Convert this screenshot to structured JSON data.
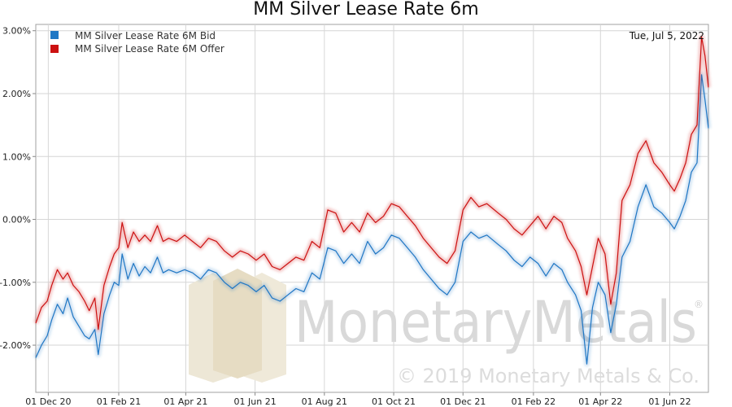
{
  "chart_data": {
    "type": "line",
    "title": "MM Silver Lease Rate 6m",
    "date_label": "Tue, Jul 5, 2022",
    "xlabel": "",
    "ylabel": "",
    "x_range": [
      "2020-11-20",
      "2022-07-05"
    ],
    "ylim": [
      -2.75,
      3.1
    ],
    "y_ticks": [
      "3.00%",
      "2.00%",
      "1.00%",
      "0.00%",
      "-1.00%",
      "-2.00%"
    ],
    "y_tick_values": [
      3,
      2,
      1,
      0,
      -1,
      -2
    ],
    "x_ticks": [
      "01 Dec 20",
      "01 Feb 21",
      "01 Apr 21",
      "01 Jun 21",
      "01 Aug 21",
      "01 Oct 21",
      "01 Dec 21",
      "01 Feb 22",
      "01 Apr 22",
      "01 Jun 22"
    ],
    "x_tick_dates": [
      "2020-12-01",
      "2021-02-01",
      "2021-04-01",
      "2021-06-01",
      "2021-08-01",
      "2021-10-01",
      "2021-12-01",
      "2022-02-01",
      "2022-04-01",
      "2022-06-01"
    ],
    "grid": true,
    "legend_position": "top-left",
    "watermark": {
      "brand": "MonetaryMetals",
      "registered": "®",
      "copyright": "© 2019 Monetary Metals & Co."
    },
    "series": [
      {
        "name": "MM Silver Lease Rate 6M Bid",
        "color": "#1f77c4",
        "points": [
          [
            "2020-11-20",
            -2.2
          ],
          [
            "2020-11-25",
            -2.0
          ],
          [
            "2020-11-30",
            -1.85
          ],
          [
            "2020-12-04",
            -1.6
          ],
          [
            "2020-12-09",
            -1.35
          ],
          [
            "2020-12-14",
            -1.5
          ],
          [
            "2020-12-18",
            -1.25
          ],
          [
            "2020-12-23",
            -1.55
          ],
          [
            "2020-12-28",
            -1.7
          ],
          [
            "2021-01-02",
            -1.85
          ],
          [
            "2021-01-06",
            -1.9
          ],
          [
            "2021-01-11",
            -1.75
          ],
          [
            "2021-01-14",
            -2.15
          ],
          [
            "2021-01-19",
            -1.5
          ],
          [
            "2021-01-24",
            -1.2
          ],
          [
            "2021-01-28",
            -1.0
          ],
          [
            "2021-02-01",
            -1.05
          ],
          [
            "2021-02-04",
            -0.55
          ],
          [
            "2021-02-09",
            -0.95
          ],
          [
            "2021-02-14",
            -0.7
          ],
          [
            "2021-02-19",
            -0.9
          ],
          [
            "2021-02-24",
            -0.75
          ],
          [
            "2021-03-01",
            -0.85
          ],
          [
            "2021-03-07",
            -0.6
          ],
          [
            "2021-03-12",
            -0.85
          ],
          [
            "2021-03-17",
            -0.8
          ],
          [
            "2021-03-24",
            -0.85
          ],
          [
            "2021-03-31",
            -0.8
          ],
          [
            "2021-04-07",
            -0.85
          ],
          [
            "2021-04-14",
            -0.95
          ],
          [
            "2021-04-21",
            -0.8
          ],
          [
            "2021-04-28",
            -0.85
          ],
          [
            "2021-05-05",
            -1.0
          ],
          [
            "2021-05-12",
            -1.1
          ],
          [
            "2021-05-19",
            -1.0
          ],
          [
            "2021-05-26",
            -1.05
          ],
          [
            "2021-06-02",
            -1.15
          ],
          [
            "2021-06-09",
            -1.05
          ],
          [
            "2021-06-16",
            -1.25
          ],
          [
            "2021-06-23",
            -1.3
          ],
          [
            "2021-06-30",
            -1.2
          ],
          [
            "2021-07-07",
            -1.1
          ],
          [
            "2021-07-14",
            -1.15
          ],
          [
            "2021-07-21",
            -0.85
          ],
          [
            "2021-07-28",
            -0.95
          ],
          [
            "2021-08-04",
            -0.45
          ],
          [
            "2021-08-11",
            -0.5
          ],
          [
            "2021-08-18",
            -0.7
          ],
          [
            "2021-08-25",
            -0.55
          ],
          [
            "2021-09-01",
            -0.7
          ],
          [
            "2021-09-08",
            -0.35
          ],
          [
            "2021-09-15",
            -0.55
          ],
          [
            "2021-09-22",
            -0.45
          ],
          [
            "2021-09-29",
            -0.25
          ],
          [
            "2021-10-06",
            -0.3
          ],
          [
            "2021-10-13",
            -0.45
          ],
          [
            "2021-10-20",
            -0.6
          ],
          [
            "2021-10-27",
            -0.8
          ],
          [
            "2021-11-03",
            -0.95
          ],
          [
            "2021-11-10",
            -1.1
          ],
          [
            "2021-11-17",
            -1.2
          ],
          [
            "2021-11-24",
            -1.0
          ],
          [
            "2021-12-01",
            -0.35
          ],
          [
            "2021-12-08",
            -0.2
          ],
          [
            "2021-12-15",
            -0.3
          ],
          [
            "2021-12-22",
            -0.25
          ],
          [
            "2022-01-01",
            -0.4
          ],
          [
            "2022-01-08",
            -0.5
          ],
          [
            "2022-01-15",
            -0.65
          ],
          [
            "2022-01-22",
            -0.75
          ],
          [
            "2022-01-29",
            -0.6
          ],
          [
            "2022-02-05",
            -0.7
          ],
          [
            "2022-02-12",
            -0.9
          ],
          [
            "2022-02-19",
            -0.7
          ],
          [
            "2022-02-26",
            -0.8
          ],
          [
            "2022-03-03",
            -1.0
          ],
          [
            "2022-03-10",
            -1.2
          ],
          [
            "2022-03-15",
            -1.45
          ],
          [
            "2022-03-20",
            -2.3
          ],
          [
            "2022-03-25",
            -1.4
          ],
          [
            "2022-03-30",
            -1.0
          ],
          [
            "2022-04-05",
            -1.2
          ],
          [
            "2022-04-10",
            -1.8
          ],
          [
            "2022-04-15",
            -1.35
          ],
          [
            "2022-04-20",
            -0.6
          ],
          [
            "2022-04-27",
            -0.35
          ],
          [
            "2022-05-04",
            0.2
          ],
          [
            "2022-05-11",
            0.55
          ],
          [
            "2022-05-18",
            0.2
          ],
          [
            "2022-05-25",
            0.1
          ],
          [
            "2022-06-01",
            -0.05
          ],
          [
            "2022-06-05",
            -0.15
          ],
          [
            "2022-06-10",
            0.05
          ],
          [
            "2022-06-15",
            0.3
          ],
          [
            "2022-06-20",
            0.75
          ],
          [
            "2022-06-25",
            0.9
          ],
          [
            "2022-06-29",
            2.3
          ],
          [
            "2022-07-02",
            1.9
          ],
          [
            "2022-07-05",
            1.45
          ]
        ]
      },
      {
        "name": "MM Silver Lease Rate 6M Offer",
        "color": "#cc1111",
        "points": [
          [
            "2020-11-20",
            -1.65
          ],
          [
            "2020-11-25",
            -1.4
          ],
          [
            "2020-11-30",
            -1.3
          ],
          [
            "2020-12-04",
            -1.05
          ],
          [
            "2020-12-09",
            -0.8
          ],
          [
            "2020-12-14",
            -0.95
          ],
          [
            "2020-12-18",
            -0.85
          ],
          [
            "2020-12-23",
            -1.05
          ],
          [
            "2020-12-28",
            -1.15
          ],
          [
            "2021-01-02",
            -1.3
          ],
          [
            "2021-01-06",
            -1.45
          ],
          [
            "2021-01-11",
            -1.25
          ],
          [
            "2021-01-14",
            -1.75
          ],
          [
            "2021-01-19",
            -1.05
          ],
          [
            "2021-01-24",
            -0.75
          ],
          [
            "2021-01-28",
            -0.55
          ],
          [
            "2021-02-01",
            -0.45
          ],
          [
            "2021-02-04",
            -0.05
          ],
          [
            "2021-02-09",
            -0.45
          ],
          [
            "2021-02-14",
            -0.2
          ],
          [
            "2021-02-19",
            -0.35
          ],
          [
            "2021-02-24",
            -0.25
          ],
          [
            "2021-03-01",
            -0.35
          ],
          [
            "2021-03-07",
            -0.1
          ],
          [
            "2021-03-12",
            -0.35
          ],
          [
            "2021-03-17",
            -0.3
          ],
          [
            "2021-03-24",
            -0.35
          ],
          [
            "2021-03-31",
            -0.25
          ],
          [
            "2021-04-07",
            -0.35
          ],
          [
            "2021-04-14",
            -0.45
          ],
          [
            "2021-04-21",
            -0.3
          ],
          [
            "2021-04-28",
            -0.35
          ],
          [
            "2021-05-05",
            -0.5
          ],
          [
            "2021-05-12",
            -0.6
          ],
          [
            "2021-05-19",
            -0.5
          ],
          [
            "2021-05-26",
            -0.55
          ],
          [
            "2021-06-02",
            -0.65
          ],
          [
            "2021-06-09",
            -0.55
          ],
          [
            "2021-06-16",
            -0.75
          ],
          [
            "2021-06-23",
            -0.8
          ],
          [
            "2021-06-30",
            -0.7
          ],
          [
            "2021-07-07",
            -0.6
          ],
          [
            "2021-07-14",
            -0.65
          ],
          [
            "2021-07-21",
            -0.35
          ],
          [
            "2021-07-28",
            -0.45
          ],
          [
            "2021-08-04",
            0.15
          ],
          [
            "2021-08-11",
            0.1
          ],
          [
            "2021-08-18",
            -0.2
          ],
          [
            "2021-08-25",
            -0.05
          ],
          [
            "2021-09-01",
            -0.2
          ],
          [
            "2021-09-08",
            0.1
          ],
          [
            "2021-09-15",
            -0.05
          ],
          [
            "2021-09-22",
            0.05
          ],
          [
            "2021-09-29",
            0.25
          ],
          [
            "2021-10-06",
            0.2
          ],
          [
            "2021-10-13",
            0.05
          ],
          [
            "2021-10-20",
            -0.1
          ],
          [
            "2021-10-27",
            -0.3
          ],
          [
            "2021-11-03",
            -0.45
          ],
          [
            "2021-11-10",
            -0.6
          ],
          [
            "2021-11-17",
            -0.7
          ],
          [
            "2021-11-24",
            -0.5
          ],
          [
            "2021-12-01",
            0.15
          ],
          [
            "2021-12-08",
            0.35
          ],
          [
            "2021-12-15",
            0.2
          ],
          [
            "2021-12-22",
            0.25
          ],
          [
            "2022-01-01",
            0.1
          ],
          [
            "2022-01-08",
            0.0
          ],
          [
            "2022-01-15",
            -0.15
          ],
          [
            "2022-01-22",
            -0.25
          ],
          [
            "2022-01-29",
            -0.1
          ],
          [
            "2022-02-05",
            0.05
          ],
          [
            "2022-02-12",
            -0.15
          ],
          [
            "2022-02-19",
            0.05
          ],
          [
            "2022-02-26",
            -0.05
          ],
          [
            "2022-03-03",
            -0.3
          ],
          [
            "2022-03-10",
            -0.5
          ],
          [
            "2022-03-15",
            -0.75
          ],
          [
            "2022-03-20",
            -1.2
          ],
          [
            "2022-03-25",
            -0.75
          ],
          [
            "2022-03-30",
            -0.3
          ],
          [
            "2022-04-05",
            -0.55
          ],
          [
            "2022-04-10",
            -1.35
          ],
          [
            "2022-04-15",
            -0.85
          ],
          [
            "2022-04-20",
            0.3
          ],
          [
            "2022-04-27",
            0.55
          ],
          [
            "2022-05-04",
            1.05
          ],
          [
            "2022-05-11",
            1.25
          ],
          [
            "2022-05-18",
            0.9
          ],
          [
            "2022-05-25",
            0.75
          ],
          [
            "2022-06-01",
            0.55
          ],
          [
            "2022-06-05",
            0.45
          ],
          [
            "2022-06-10",
            0.65
          ],
          [
            "2022-06-15",
            0.9
          ],
          [
            "2022-06-20",
            1.35
          ],
          [
            "2022-06-25",
            1.5
          ],
          [
            "2022-06-29",
            2.9
          ],
          [
            "2022-07-02",
            2.6
          ],
          [
            "2022-07-05",
            2.1
          ]
        ]
      }
    ]
  }
}
